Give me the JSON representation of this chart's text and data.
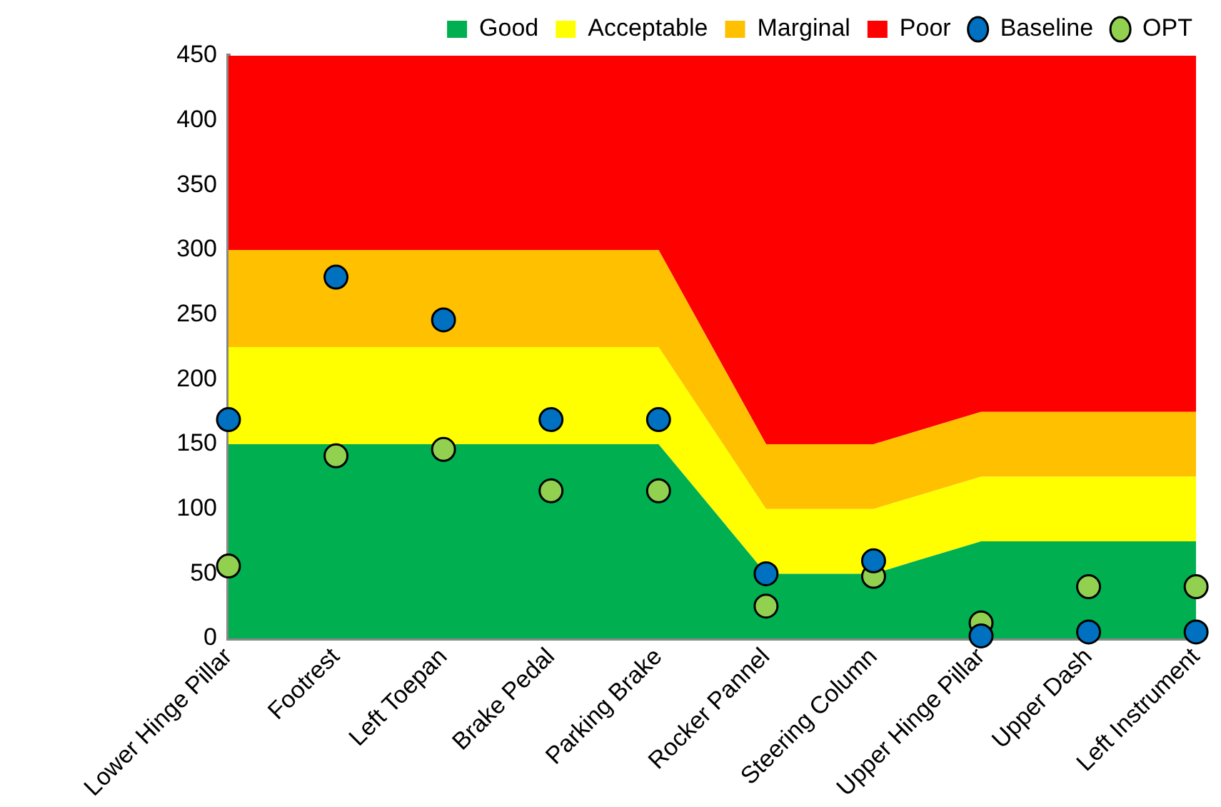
{
  "chart_data": {
    "type": "area",
    "stacked": true,
    "legend": "top",
    "grid": false,
    "categories": [
      "Lower Hinge Pillar",
      "Footrest",
      "Left Toepan",
      "Brake Pedal",
      "Parking Brake",
      "Rocker Pannel",
      "Steering Column",
      "Upper Hinge Pillar",
      "Upper Dash",
      "Left Instrument"
    ],
    "ylim": [
      0,
      450
    ],
    "yticks": [
      0,
      50,
      100,
      150,
      200,
      250,
      300,
      350,
      400,
      450
    ],
    "series": [
      {
        "name": "Good",
        "color": "#00b050",
        "values": [
          150,
          150,
          150,
          150,
          150,
          50,
          50,
          75,
          75,
          75
        ]
      },
      {
        "name": "Acceptable",
        "color": "#ffff00",
        "values": [
          75,
          75,
          75,
          75,
          75,
          50,
          50,
          50,
          50,
          50
        ]
      },
      {
        "name": "Marginal",
        "color": "#ffc000",
        "values": [
          75,
          75,
          75,
          75,
          75,
          50,
          50,
          50,
          50,
          50
        ]
      },
      {
        "name": "Poor",
        "color": "#ff0000",
        "values": [
          150,
          150,
          150,
          150,
          150,
          300,
          300,
          275,
          275,
          275
        ]
      },
      {
        "name": "Baseline",
        "type": "scatter",
        "marker": "circle",
        "color": "#0070c0",
        "values": [
          169,
          279,
          246,
          169,
          169,
          50,
          60,
          2,
          5,
          5
        ]
      },
      {
        "name": "OPT",
        "type": "scatter",
        "marker": "circle",
        "color": "#92d050",
        "values": [
          56,
          141,
          146,
          114,
          114,
          25,
          48,
          12,
          40,
          40
        ]
      }
    ]
  }
}
